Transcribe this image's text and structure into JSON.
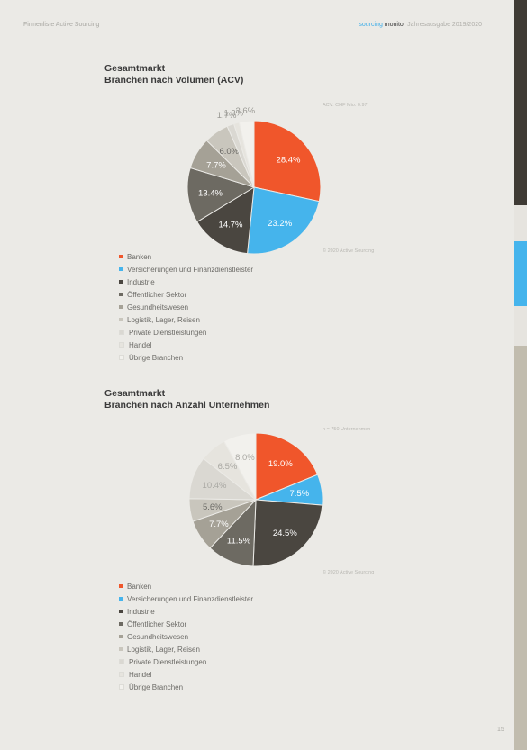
{
  "header": {
    "left": "Firmenliste Active Sourcing",
    "brand_a": "sourcing",
    "brand_b": "monitor",
    "right_rest": "Jahresausgabe 2019/2020"
  },
  "charts": [
    {
      "title_line1": "Gesamtmarkt",
      "title_line2": "Branchen nach Volumen (ACV)",
      "note_top": "ACV: CHF Mio. 0.97",
      "note_bottom": "© 2020 Active Sourcing"
    },
    {
      "title_line1": "Gesamtmarkt",
      "title_line2": "Branchen nach Anzahl Unternehmen",
      "note_top": "n = 750 Unternehmen",
      "note_bottom": "© 2020 Active Sourcing"
    }
  ],
  "chart_data": [
    {
      "type": "pie",
      "title": "Gesamtmarkt Branchen nach Volumen (ACV)",
      "categories": [
        "Banken",
        "Versicherungen und Finanzdienstleister",
        "Industrie",
        "Öffentlicher Sektor",
        "Gesundheitswesen",
        "Logistik, Lager, Reisen",
        "Private Dienstleistungen",
        "Handel",
        "Übrige Branchen"
      ],
      "values": [
        28.4,
        23.2,
        14.7,
        13.4,
        7.7,
        6.0,
        1.7,
        1.3,
        3.6
      ],
      "labels": [
        "28.4%",
        "23.2%",
        "14.7%",
        "13.4%",
        "7.7%",
        "6.0%",
        "1.7%",
        "1.3%",
        "3.6%"
      ],
      "colors": [
        "#f0562b",
        "#45b4ec",
        "#4a4640",
        "#6d6a62",
        "#a5a196",
        "#c9c6bd",
        "#dad8d2",
        "#e6e4de",
        "#f2f1ed"
      ],
      "label_colors": [
        "#ffffff",
        "#ffffff",
        "#ffffff",
        "#ffffff",
        "#ffffff",
        "#6b6a66",
        "#a9a8a3",
        "#a9a8a3",
        "#a9a8a3"
      ],
      "legend_placement": "bottom-left"
    },
    {
      "type": "pie",
      "title": "Gesamtmarkt Branchen nach Anzahl Unternehmen",
      "categories": [
        "Banken",
        "Versicherungen und Finanzdienstleister",
        "Industrie",
        "Öffentlicher Sektor",
        "Gesundheitswesen",
        "Logistik, Lager, Reisen",
        "Private Dienstleistungen",
        "Handel",
        "Übrige Branchen"
      ],
      "values": [
        19.0,
        7.5,
        24.5,
        11.5,
        7.7,
        5.6,
        10.4,
        6.5,
        8.0
      ],
      "labels": [
        "19.0%",
        "7.5%",
        "24.5%",
        "11.5%",
        "7.7%",
        "5.6%",
        "10.4%",
        "6.5%",
        "8.0%"
      ],
      "colors": [
        "#f0562b",
        "#45b4ec",
        "#4a4640",
        "#6d6a62",
        "#a5a196",
        "#c9c6bd",
        "#dad8d2",
        "#e6e4de",
        "#f2f1ed"
      ],
      "label_colors": [
        "#ffffff",
        "#ffffff",
        "#ffffff",
        "#ffffff",
        "#ffffff",
        "#6b6a66",
        "#a9a8a3",
        "#a9a8a3",
        "#a9a8a3"
      ],
      "legend_placement": "bottom-left"
    }
  ],
  "spine_colors": [
    "#3f3b35",
    "#45b4ec",
    "#c1bcae"
  ],
  "page_number": "15"
}
